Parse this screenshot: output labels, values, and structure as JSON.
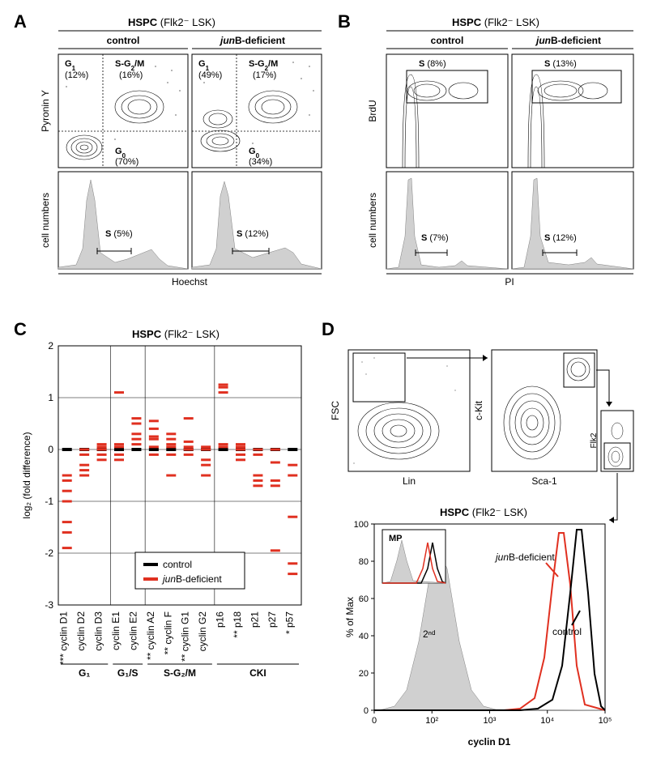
{
  "panelA": {
    "label": "A",
    "header": "HSPC",
    "header_paren": "(Flk2⁻ LSK)",
    "columns": [
      "control",
      "junB-deficient"
    ],
    "y_top": "Pyronin Y",
    "y_bot": "cell numbers",
    "x_axis": "Hoechst",
    "top_gates_control": {
      "G0": "(70%)",
      "G1": "(12%)",
      "SG2M": "(16%)"
    },
    "top_gates_junb": {
      "G0": "(34%)",
      "G1": "(49%)",
      "SG2M": "(17%)"
    },
    "bot_s_control": "(5%)",
    "bot_s_junb": "(12%)",
    "G0_label": "G₀",
    "G1_label": "G₁",
    "SG2M_label": "S-G₂/M",
    "S_label": "S"
  },
  "panelB": {
    "label": "B",
    "header": "HSPC",
    "header_paren": "(Flk2⁻ LSK)",
    "columns": [
      "control",
      "junB-deficient"
    ],
    "y_top": "BrdU",
    "y_bot": "cell numbers",
    "x_axis": "PI",
    "top_s_control": "(8%)",
    "top_s_junb": "(13%)",
    "bot_s_control": "(7%)",
    "bot_s_junb": "(12%)",
    "S_label": "S"
  },
  "panelC": {
    "label": "C",
    "header": "HSPC",
    "header_paren": "(Flk2⁻ LSK)",
    "y_axis": "log₂ (fold difference)",
    "y_ticks": [
      -3,
      -2,
      -1,
      0,
      1,
      2
    ],
    "groups": [
      "G₁",
      "G₁/S",
      "S-G₂/M",
      "CKI"
    ],
    "genes": [
      {
        "name": "cyclin D1",
        "sig": "***",
        "vals": [
          -1.0,
          -1.4,
          -1.6,
          -1.9,
          -0.8,
          -0.5,
          -0.6
        ]
      },
      {
        "name": "cyclin D2",
        "sig": "",
        "vals": [
          -0.5,
          -0.4,
          -0.3,
          0.0,
          -0.1
        ]
      },
      {
        "name": "cyclin D3",
        "sig": "",
        "vals": [
          0.05,
          -0.1,
          0.1,
          -0.2,
          0.0
        ]
      },
      {
        "name": "cyclin E1",
        "sig": "",
        "vals": [
          -0.1,
          0.05,
          0.1,
          -0.2,
          1.1
        ]
      },
      {
        "name": "cyclin E2",
        "sig": "",
        "vals": [
          0.3,
          0.2,
          0.1,
          0.5,
          0.6
        ]
      },
      {
        "name": "cyclin A2",
        "sig": "**",
        "vals": [
          0.2,
          0.05,
          -0.1,
          0.55,
          0.25,
          0.4
        ]
      },
      {
        "name": "cyclin F",
        "sig": "**",
        "vals": [
          0.1,
          0.2,
          -0.1,
          -0.5,
          0.3,
          0.05
        ]
      },
      {
        "name": "cyclin G1",
        "sig": "**",
        "vals": [
          0.0,
          0.05,
          -0.1,
          0.15,
          0.6
        ]
      },
      {
        "name": "cyclin G2",
        "sig": "",
        "vals": [
          -0.3,
          -0.2,
          0.0,
          -0.5,
          0.05
        ]
      },
      {
        "name": "p16",
        "sig": "",
        "vals": [
          1.2,
          1.1,
          1.25,
          0.05,
          0.1
        ]
      },
      {
        "name": "p18",
        "sig": "**",
        "vals": [
          -0.1,
          0.05,
          -0.2,
          0.1,
          0.0
        ]
      },
      {
        "name": "p21",
        "sig": "",
        "vals": [
          0.0,
          -0.1,
          -0.6,
          -0.7,
          -0.5
        ]
      },
      {
        "name": "p27",
        "sig": "",
        "vals": [
          0.0,
          -0.6,
          -0.25,
          -0.7,
          -1.95
        ]
      },
      {
        "name": "p57",
        "sig": "*",
        "vals": [
          -0.3,
          -0.5,
          -1.3,
          -2.2,
          -2.4
        ]
      }
    ],
    "group_bounds": [
      3,
      5,
      9,
      14
    ],
    "legend": {
      "control": "control",
      "junb": "junB-deficient"
    },
    "marker_color": "#e03020"
  },
  "panelD": {
    "label": "D",
    "gating": {
      "x1": "Lin",
      "y1": "FSC",
      "x2": "Sca-1",
      "y2": "c-Kit",
      "y3": "Flk2"
    },
    "hist": {
      "header": "HSPC",
      "header_paren": "(Flk2⁻ LSK)",
      "inset_label": "MP",
      "second": "2ⁿᵈ",
      "junb": "junB-deficient",
      "control": "control",
      "x": "cyclin D1",
      "y": "% of Max",
      "y_ticks": [
        0,
        20,
        40,
        60,
        80,
        100
      ],
      "x_ticks": [
        "0",
        "10²",
        "10³",
        "10⁴",
        "10⁵"
      ],
      "junb_color": "#e03020",
      "control_color": "#000000",
      "second_color": "#d0d0d0"
    }
  }
}
